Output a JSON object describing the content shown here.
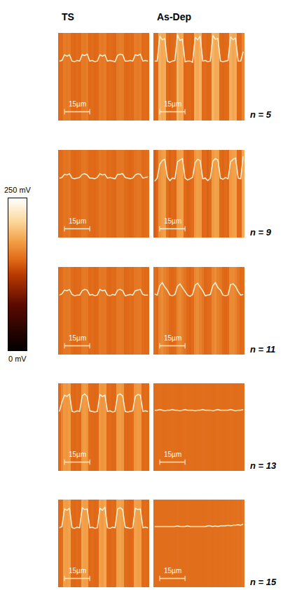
{
  "chart_data": {
    "type": "heatmap",
    "columns": [
      "TS",
      "As-Dep"
    ],
    "tick_labels": false,
    "x": [
      0,
      1.5,
      3,
      4.5,
      6,
      7.5,
      9,
      10.5,
      12,
      13.5,
      15,
      16.5,
      18,
      19.5,
      21,
      22.5,
      24,
      25.5,
      27,
      28.5,
      30,
      31.5,
      33,
      34.5,
      36,
      37.5,
      39,
      40.5,
      42,
      43.5,
      45,
      46.5,
      48,
      49.5,
      51,
      52.5
    ],
    "xlim": [
      -0.75,
      53.25
    ],
    "profile_ylim": [
      55,
      195
    ],
    "colorbar": {
      "range": [
        0,
        250
      ],
      "ticks": [
        {
          "value": 0,
          "label": "0 mV"
        },
        {
          "value": 250,
          "label": "250 mV"
        }
      ]
    },
    "scale_bar": {
      "value": 15,
      "label": "15µm"
    },
    "rows": [
      {
        "label": "n = 5",
        "panels": [
          [
            150,
            151,
            160,
            158,
            160,
            150,
            149,
            151,
            150,
            160,
            159,
            161,
            150,
            151,
            149,
            150,
            160,
            158,
            160,
            150,
            151,
            150,
            149,
            159,
            161,
            160,
            150,
            150,
            151,
            150,
            160,
            159,
            161,
            150,
            151,
            150
          ],
          [
            150,
            150,
            190,
            184,
            186,
            150,
            148,
            150,
            151,
            192,
            183,
            185,
            149,
            150,
            150,
            148,
            188,
            184,
            190,
            150,
            151,
            149,
            150,
            191,
            185,
            186,
            150,
            149,
            150,
            151,
            189,
            184,
            187,
            150,
            150,
            165
          ]
        ]
      },
      {
        "label": "n = 9",
        "panels": [
          [
            150,
            151,
            156,
            155,
            157,
            150,
            149,
            150,
            151,
            156,
            157,
            155,
            150,
            150,
            149,
            151,
            157,
            155,
            156,
            150,
            151,
            150,
            149,
            156,
            156,
            157,
            151,
            150,
            149,
            150,
            155,
            157,
            156,
            150,
            151,
            152
          ],
          [
            145,
            150,
            172,
            178,
            180,
            152,
            146,
            150,
            149,
            176,
            179,
            181,
            150,
            147,
            149,
            151,
            175,
            180,
            178,
            149,
            150,
            146,
            150,
            177,
            181,
            179,
            150,
            148,
            151,
            149,
            176,
            180,
            182,
            150,
            149,
            185
          ]
        ]
      },
      {
        "label": "n = 11",
        "panels": [
          [
            150,
            152,
            158,
            157,
            159,
            151,
            149,
            150,
            150,
            157,
            159,
            158,
            150,
            151,
            149,
            150,
            159,
            157,
            158,
            150,
            149,
            151,
            150,
            158,
            159,
            157,
            149,
            150,
            151,
            150,
            157,
            158,
            159,
            151,
            150,
            150
          ],
          [
            152,
            150,
            165,
            170,
            163,
            158,
            150,
            149,
            151,
            164,
            168,
            162,
            156,
            150,
            148,
            151,
            166,
            169,
            163,
            157,
            149,
            150,
            151,
            165,
            170,
            162,
            158,
            150,
            149,
            150,
            167,
            168,
            164,
            156,
            150,
            151
          ]
        ]
      },
      {
        "label": "n = 13",
        "panels": [
          [
            150,
            165,
            176,
            174,
            178,
            150,
            149,
            151,
            150,
            175,
            178,
            174,
            151,
            150,
            149,
            150,
            177,
            174,
            176,
            150,
            151,
            149,
            150,
            176,
            178,
            175,
            150,
            149,
            150,
            151,
            174,
            177,
            176,
            150,
            151,
            150
          ],
          [
            152,
            152,
            153,
            152,
            151,
            152,
            152,
            153,
            152,
            152,
            151,
            152,
            153,
            152,
            152,
            152,
            151,
            152,
            152,
            153,
            152,
            152,
            152,
            151,
            152,
            153,
            152,
            152,
            152,
            152,
            153,
            152,
            151,
            152,
            152,
            153
          ]
        ]
      },
      {
        "label": "n = 15",
        "panels": [
          [
            150,
            152,
            180,
            178,
            181,
            150,
            149,
            151,
            150,
            182,
            179,
            180,
            150,
            151,
            149,
            150,
            181,
            178,
            183,
            150,
            149,
            151,
            150,
            180,
            182,
            179,
            151,
            150,
            149,
            150,
            181,
            179,
            180,
            150,
            151,
            150
          ],
          [
            152,
            152,
            152,
            152,
            152,
            152,
            152,
            152,
            152,
            153,
            152,
            152,
            152,
            153,
            152,
            152,
            152,
            152,
            152,
            152,
            152,
            153,
            153,
            152,
            153,
            152,
            153,
            153,
            153,
            154,
            153,
            154,
            154,
            155,
            154,
            156
          ]
        ]
      }
    ]
  }
}
